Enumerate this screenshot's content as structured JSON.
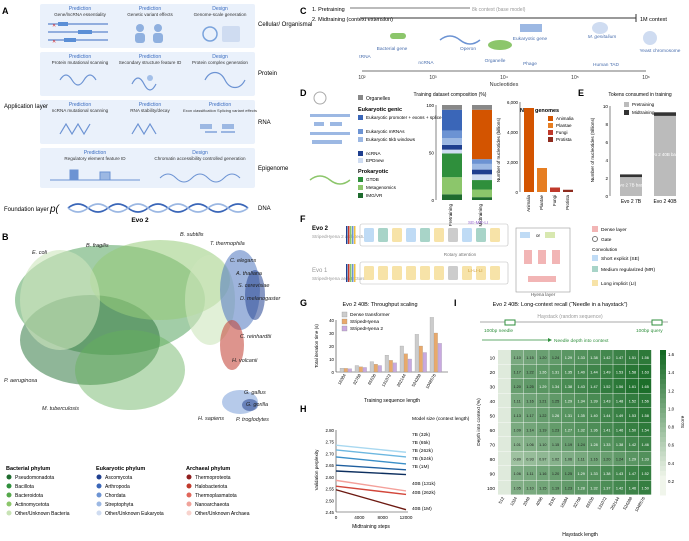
{
  "panels": {
    "A": "A",
    "B": "B",
    "C": "C",
    "D": "D",
    "E": "E",
    "F": "F",
    "G": "G",
    "H": "H",
    "I": "I"
  },
  "panel_a": {
    "app_layer": "Application layer",
    "foundation_layer": "Foundation layer",
    "model": "Evo 2",
    "p_symbol": "p(",
    "rows": [
      {
        "layer": "Cellular/ Organismal",
        "cards": [
          {
            "head": "Prediction",
            "body": "Gene/lncRNA essentiality"
          },
          {
            "head": "Prediction",
            "body": "Genetic variant effects"
          },
          {
            "head": "Design",
            "body": "Genome-scale generation"
          }
        ]
      },
      {
        "layer": "Protein",
        "cards": [
          {
            "head": "Prediction",
            "body": "Protein mutational scanning"
          },
          {
            "head": "Prediction",
            "body": "Secondary structure feature ID"
          },
          {
            "head": "Design",
            "body": "Protein complex generation"
          }
        ]
      },
      {
        "layer": "RNA",
        "cards": [
          {
            "head": "Prediction",
            "body": "ncRNA mutational scanning"
          },
          {
            "head": "Prediction",
            "body": "RNA stability/decay"
          },
          {
            "head": "Prediction",
            "body": "Exon classification Splicing variant effects"
          }
        ]
      },
      {
        "layer": "Epigenome",
        "cards": [
          {
            "head": "Prediction",
            "body": "Regulatory element feature ID"
          },
          {
            "head": "Design",
            "body": "Chromatin accessibility controlled generation"
          }
        ]
      }
    ],
    "dna": "DNA"
  },
  "panel_b": {
    "labels": [
      "B. fragilis",
      "B. subtilis",
      "E. coli",
      "T. thermophila",
      "C. elegans",
      "A. thaliana",
      "S. cerevisiae",
      "D. melanogaster",
      "C. reinhardtii",
      "H. volcanii",
      "G. gallus",
      "G. gorilla",
      "H. sapiens",
      "P. troglodytes",
      "P. aeruginosa",
      "M. tuberculosis"
    ],
    "legend": [
      {
        "title": "Bacterial phylum",
        "items": [
          [
            "Pseudomonadota",
            "#1e6b2e"
          ],
          [
            "Bacillota",
            "#2f8f3c"
          ],
          [
            "Bacteroidota",
            "#55a84a"
          ],
          [
            "Actinomycetota",
            "#8cc66b"
          ],
          [
            "Other/Unknown Bacteria",
            "#c8e3b5"
          ]
        ]
      },
      {
        "title": "Eukaryotic phylum",
        "items": [
          [
            "Ascomycota",
            "#1f3f8f"
          ],
          [
            "Arthropoda",
            "#3a66b8"
          ],
          [
            "Chordata",
            "#6c93d3"
          ],
          [
            "Streptophyta",
            "#9cb8e3"
          ],
          [
            "Other/Unknown Eukaryota",
            "#cfdcf1"
          ]
        ]
      },
      {
        "title": "Archaeal phylum",
        "items": [
          [
            "Thermoproteota",
            "#8f1d1d"
          ],
          [
            "Halobacteriota",
            "#c0392b"
          ],
          [
            "Thermoplasmatota",
            "#e0665a"
          ],
          [
            "Nanoarchaeota",
            "#f0a39a"
          ],
          [
            "Other/Unknown Archaea",
            "#f8d3cd"
          ]
        ]
      }
    ]
  },
  "panel_c": {
    "stage1": "1. Pretraining",
    "stage2": "2. Midtraining (context extension)",
    "ctx_label": "8k context (base model)",
    "ctx_end": "1M context",
    "axis": "Nucleotides",
    "ticks": [
      "10²",
      "10³",
      "10⁴",
      "10⁵",
      "10⁶"
    ],
    "items": [
      "tRNA",
      "Bacterial gene",
      "ncRNA",
      "Operon",
      "Organelle",
      "Eukaryotic gene",
      "Phage",
      "M. genitalium",
      "Yeast chromosome",
      "Human TAD"
    ]
  },
  "panel_d": {
    "organelles": "Organelles",
    "euk_title": "Eukaryotic genic",
    "euk_items": [
      "Eukaryotic promoter + exons + splice sites",
      "Eukaryotic mRNAs",
      "Eukaryotic 5kb windows",
      "ncRNA",
      "EPDnew"
    ],
    "prok_title": "Prokaryotic",
    "prok_items": [
      "GTDB",
      "Metagenomics",
      "IMG/VR"
    ],
    "comp_title": "Training dataset composition (%)",
    "comp_x": [
      "Pretraining",
      "Midtraining"
    ],
    "comp_y": [
      "0",
      "50",
      "100"
    ],
    "ncbi_title": "NCBI genomes",
    "ncbi_items": [
      "Animalia",
      "Plantae",
      "Fungi",
      "Protista"
    ],
    "ncbi_ylabel": "Number of nucleotides (billions)",
    "ncbi_yticks": [
      "0",
      "2,000",
      "4,000",
      "6,000"
    ],
    "ncbi_values": [
      5600,
      1600,
      300,
      150
    ]
  },
  "panel_e": {
    "title": "Tokens consumed in training",
    "legend": [
      "Pretraining",
      "Midtraining"
    ],
    "ylabel": "Number of nucleotides (trillions)",
    "yticks": [
      "0",
      "2",
      "4",
      "6",
      "8",
      "10"
    ],
    "bars": [
      {
        "name": "Evo 2 7B",
        "pre": 2.1,
        "mid": 0.3,
        "note": "Evo 2 7B base"
      },
      {
        "name": "Evo 2 40B",
        "pre": 8.9,
        "mid": 0.4,
        "note": "Evo 2 40B base"
      }
    ]
  },
  "panel_f": {
    "evo2": "Evo 2",
    "evo2_arch": "StripedHyena 2 architecture",
    "evo1": "Evo 1",
    "evo1_arch": "StripedHyena architecture",
    "rotary": "Rotary attention",
    "hyena_layer": "Hyena layer",
    "se_mr_li": "SE-MR-LI",
    "li_li_li": "LI-LI-LI",
    "or": "or",
    "legend": [
      "Dense layer",
      "Gate",
      "Convolution",
      "Short explicit (SE)",
      "Medium regularized (MR)",
      "Long implicit (LI)"
    ]
  },
  "panel_g": {
    "title": "Evo 2 40B: Throughput scaling",
    "legend": [
      "Dense transformer",
      "StripedHyena",
      "StripedHyena 2"
    ],
    "ylabel": "Total iteration time (s)",
    "xlabel": "Training sequence length",
    "categories": [
      "16384",
      "32768",
      "65536",
      "131072",
      "262144",
      "524288",
      "1048576"
    ],
    "yticks": [
      "0",
      "10",
      "20",
      "30",
      "40"
    ]
  },
  "panel_h": {
    "ylabel": "Validation perplexity",
    "xlabel": "Midtraining steps",
    "xticks": [
      "0",
      "4000",
      "8000",
      "12000"
    ],
    "yticks": [
      "2.45",
      "2.50",
      "2.55",
      "2.60",
      "2.65",
      "2.70",
      "2.75",
      "2.80"
    ],
    "legend_title": "Model size (context length)",
    "series": [
      "7B (32k)",
      "7B (65k)",
      "7B (262k)",
      "7B (524k)",
      "7B (1M)",
      "40B (131k)",
      "40B (262k)",
      "40B (1M)"
    ]
  },
  "panel_i": {
    "title": "Evo 2 40B: Long-context recall (“Needle in a haystack”)",
    "haystack": "Haystack (random sequence)",
    "needle": "100bp needle",
    "query": "100bp query",
    "depth_label": "Needle depth into context",
    "ylabel": "Depth into context (%)",
    "xlabel": "Haystack length",
    "score_label": "Score",
    "scale_ticks": [
      "1.6",
      "1.4",
      "1.2",
      "1.0",
      "0.8",
      "0.6",
      "0.4",
      "0.2"
    ],
    "rows": [
      "10",
      "20",
      "30",
      "40",
      "50",
      "60",
      "70",
      "80",
      "90",
      "100"
    ],
    "cols": [
      "512",
      "1024",
      "2048",
      "4096",
      "8192",
      "16384",
      "32768",
      "65536",
      "131072",
      "262144",
      "524288",
      "1048576"
    ]
  }
}
